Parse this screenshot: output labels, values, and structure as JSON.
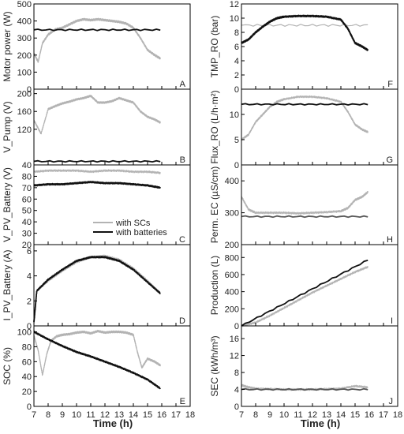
{
  "figure": {
    "x_axis_label": "Time (h)",
    "x_ticks": [
      7,
      8,
      9,
      10,
      11,
      12,
      13,
      14,
      15,
      16,
      17,
      18
    ]
  },
  "chart_data": [
    {
      "panel_letter": "A",
      "type": "line",
      "ylabel": "Motor power (W)",
      "xlim": [
        7,
        18
      ],
      "ylim": [
        0,
        500
      ],
      "yticks": [
        0,
        100,
        200,
        300,
        400,
        500
      ],
      "series": [
        {
          "name": "with SCs",
          "color": "#b3b3b3",
          "x": [
            7,
            7.3,
            7.6,
            8,
            8.5,
            9,
            9.5,
            10,
            10.5,
            11,
            11.5,
            12,
            12.5,
            13,
            13.5,
            14,
            14.5,
            15,
            15.5,
            15.9
          ],
          "y": [
            210,
            160,
            270,
            320,
            350,
            360,
            380,
            400,
            410,
            405,
            410,
            405,
            400,
            395,
            385,
            360,
            300,
            230,
            200,
            180
          ]
        },
        {
          "name": "with batteries",
          "color": "#111111",
          "x": [
            7,
            15.9
          ],
          "y": [
            348,
            348
          ]
        }
      ]
    },
    {
      "panel_letter": "B",
      "type": "line",
      "ylabel": "V_Pump (V)",
      "xlim": [
        7,
        18
      ],
      "ylim": [
        40,
        210
      ],
      "yticks": [
        40,
        120,
        160,
        200
      ],
      "series": [
        {
          "name": "with SCs",
          "color": "#b3b3b3",
          "x": [
            7,
            7.5,
            8,
            8.5,
            9,
            9.5,
            10,
            10.5,
            11,
            11.5,
            12,
            12.5,
            13,
            13.5,
            14,
            14.5,
            15,
            15.5,
            15.9
          ],
          "y": [
            140,
            110,
            165,
            172,
            178,
            182,
            187,
            190,
            195,
            180,
            180,
            183,
            190,
            185,
            180,
            160,
            148,
            142,
            135
          ]
        },
        {
          "name": "with batteries",
          "color": "#111111",
          "x": [
            7,
            15.9
          ],
          "y": [
            48,
            48
          ]
        }
      ]
    },
    {
      "panel_letter": "C",
      "type": "line",
      "ylabel": "V_PV_Battery (V)",
      "xlim": [
        7,
        18
      ],
      "ylim": [
        20,
        90
      ],
      "yticks": [
        20,
        30,
        40,
        50,
        60,
        70,
        80
      ],
      "legend": {
        "position": "bottom-right"
      },
      "series": [
        {
          "name": "with SCs",
          "color": "#b3b3b3",
          "x": [
            7,
            8,
            9,
            10,
            11,
            12,
            13,
            14,
            15,
            15.9
          ],
          "y": [
            84,
            85,
            85,
            85,
            84,
            85,
            85,
            84,
            84,
            83
          ]
        },
        {
          "name": "with batteries",
          "color": "#111111",
          "x": [
            7,
            8,
            9,
            10,
            11,
            12,
            13,
            14,
            15,
            15.9
          ],
          "y": [
            72,
            73,
            73,
            74,
            75,
            74,
            74,
            73,
            72,
            70
          ]
        }
      ]
    },
    {
      "panel_letter": "D",
      "type": "line",
      "ylabel": "I_PV_Battery (A)",
      "xlim": [
        7,
        18
      ],
      "ylim": [
        0,
        6.5
      ],
      "yticks": [
        0,
        2,
        4,
        6
      ],
      "series": [
        {
          "name": "with SCs",
          "color": "#b3b3b3",
          "x": [
            7,
            7.2,
            8,
            9,
            10,
            11,
            12,
            13,
            14,
            15,
            15.9
          ],
          "y": [
            0.2,
            2.8,
            3.6,
            4.4,
            5.1,
            5.5,
            5.6,
            5.3,
            4.6,
            3.6,
            2.6
          ]
        },
        {
          "name": "with batteries",
          "color": "#111111",
          "x": [
            7,
            7.2,
            8,
            9,
            10,
            11,
            12,
            13,
            14,
            15,
            15.9
          ],
          "y": [
            0.3,
            2.8,
            3.7,
            4.5,
            5.2,
            5.5,
            5.5,
            5.2,
            4.5,
            3.5,
            2.6
          ]
        }
      ]
    },
    {
      "panel_letter": "E",
      "type": "line",
      "ylabel": "SOC (%)",
      "xlim": [
        7,
        18
      ],
      "ylim": [
        0,
        108
      ],
      "yticks": [
        0,
        20,
        40,
        60,
        80,
        100
      ],
      "series": [
        {
          "name": "with SCs",
          "color": "#b3b3b3",
          "x": [
            7,
            7.3,
            7.6,
            7.9,
            8.2,
            8.6,
            9,
            9.5,
            10,
            10.5,
            11,
            11.5,
            12,
            12.5,
            13,
            13.5,
            14,
            14.3,
            14.6,
            15,
            15.5,
            15.9
          ],
          "y": [
            95,
            75,
            42,
            70,
            88,
            94,
            96,
            97,
            99,
            100,
            98,
            101,
            99,
            100,
            100,
            99,
            96,
            72,
            52,
            64,
            60,
            55
          ]
        },
        {
          "name": "with batteries",
          "color": "#111111",
          "x": [
            7,
            8,
            9,
            10,
            11,
            12,
            13,
            14,
            15,
            15.9
          ],
          "y": [
            100,
            90,
            81,
            73,
            67,
            60,
            53,
            45,
            36,
            24
          ]
        }
      ]
    },
    {
      "panel_letter": "F",
      "type": "line",
      "ylabel": "TMP_RO (bar)",
      "xlim": [
        7,
        18
      ],
      "ylim": [
        0,
        12
      ],
      "yticks": [
        0,
        2,
        4,
        6,
        8,
        10,
        12
      ],
      "series": [
        {
          "name": "with SCs",
          "color": "#b3b3b3",
          "x": [
            7,
            15.9
          ],
          "y": [
            9,
            9
          ]
        },
        {
          "name": "with batteries",
          "color": "#111111",
          "x": [
            7,
            7.5,
            8,
            8.5,
            9,
            9.5,
            10,
            11,
            12,
            13,
            14,
            14.5,
            15,
            15.5,
            15.9
          ],
          "y": [
            6.5,
            7,
            8,
            8.8,
            9.5,
            10,
            10.2,
            10.3,
            10.3,
            10.2,
            9.8,
            8.5,
            6.5,
            6,
            5.5
          ]
        }
      ]
    },
    {
      "panel_letter": "G",
      "type": "line",
      "ylabel": "Flux_RO (L/h·m²)",
      "xlim": [
        7,
        18
      ],
      "ylim": [
        0,
        15
      ],
      "yticks": [
        0,
        5,
        10
      ],
      "series": [
        {
          "name": "with SCs",
          "color": "#b3b3b3",
          "x": [
            7,
            7.5,
            8,
            8.5,
            9,
            9.5,
            10,
            11,
            12,
            13,
            14,
            14.5,
            15,
            15.5,
            15.9
          ],
          "y": [
            5,
            6,
            8.5,
            10,
            11.5,
            12.5,
            13,
            13.5,
            13.5,
            13.2,
            12.5,
            10.5,
            8,
            7,
            6.5
          ]
        },
        {
          "name": "with batteries",
          "color": "#111111",
          "x": [
            7,
            15.9
          ],
          "y": [
            12,
            12
          ]
        }
      ]
    },
    {
      "panel_letter": "H",
      "type": "line",
      "ylabel": "Perm. EC (µS/cm)",
      "xlim": [
        7,
        18
      ],
      "ylim": [
        200,
        450
      ],
      "yticks": [
        200,
        300,
        400
      ],
      "series": [
        {
          "name": "with SCs",
          "color": "#b3b3b3",
          "x": [
            7,
            7.5,
            8,
            9,
            10,
            11,
            12,
            13,
            14,
            14.5,
            15,
            15.5,
            15.9
          ],
          "y": [
            350,
            310,
            300,
            300,
            300,
            298,
            300,
            302,
            305,
            315,
            340,
            350,
            365
          ]
        },
        {
          "name": "with batteries",
          "color": "#5a5a5a",
          "x": [
            7,
            15.9
          ],
          "y": [
            288,
            288
          ]
        }
      ]
    },
    {
      "panel_letter": "I",
      "type": "line",
      "ylabel": "Production (L)",
      "xlim": [
        7,
        18
      ],
      "ylim": [
        0,
        950
      ],
      "yticks": [
        0,
        200,
        400,
        600,
        800
      ],
      "series": [
        {
          "name": "with SCs",
          "color": "#b3b3b3",
          "x": [
            7,
            8,
            9,
            10,
            11,
            12,
            13,
            14,
            15,
            15.9
          ],
          "y": [
            0,
            40,
            120,
            210,
            300,
            390,
            470,
            550,
            630,
            690
          ]
        },
        {
          "name": "with batteries",
          "color": "#111111",
          "x": [
            7,
            15.9
          ],
          "y": [
            0,
            770
          ]
        }
      ]
    },
    {
      "panel_letter": "J",
      "type": "line",
      "ylabel": "SEC (kWh/m³)",
      "xlim": [
        7,
        18
      ],
      "ylim": [
        0,
        19
      ],
      "yticks": [
        0,
        4,
        8,
        12,
        16
      ],
      "series": [
        {
          "name": "with SCs",
          "color": "#b3b3b3",
          "x": [
            7,
            7.5,
            8,
            9,
            10,
            11,
            12,
            13,
            14,
            15,
            15.9
          ],
          "y": [
            5,
            4.5,
            4.2,
            4.1,
            4,
            4,
            4,
            4.1,
            4.2,
            4.8,
            4.5
          ]
        },
        {
          "name": "with batteries",
          "color": "#555555",
          "x": [
            7,
            15.9
          ],
          "y": [
            4,
            4
          ]
        }
      ]
    }
  ]
}
